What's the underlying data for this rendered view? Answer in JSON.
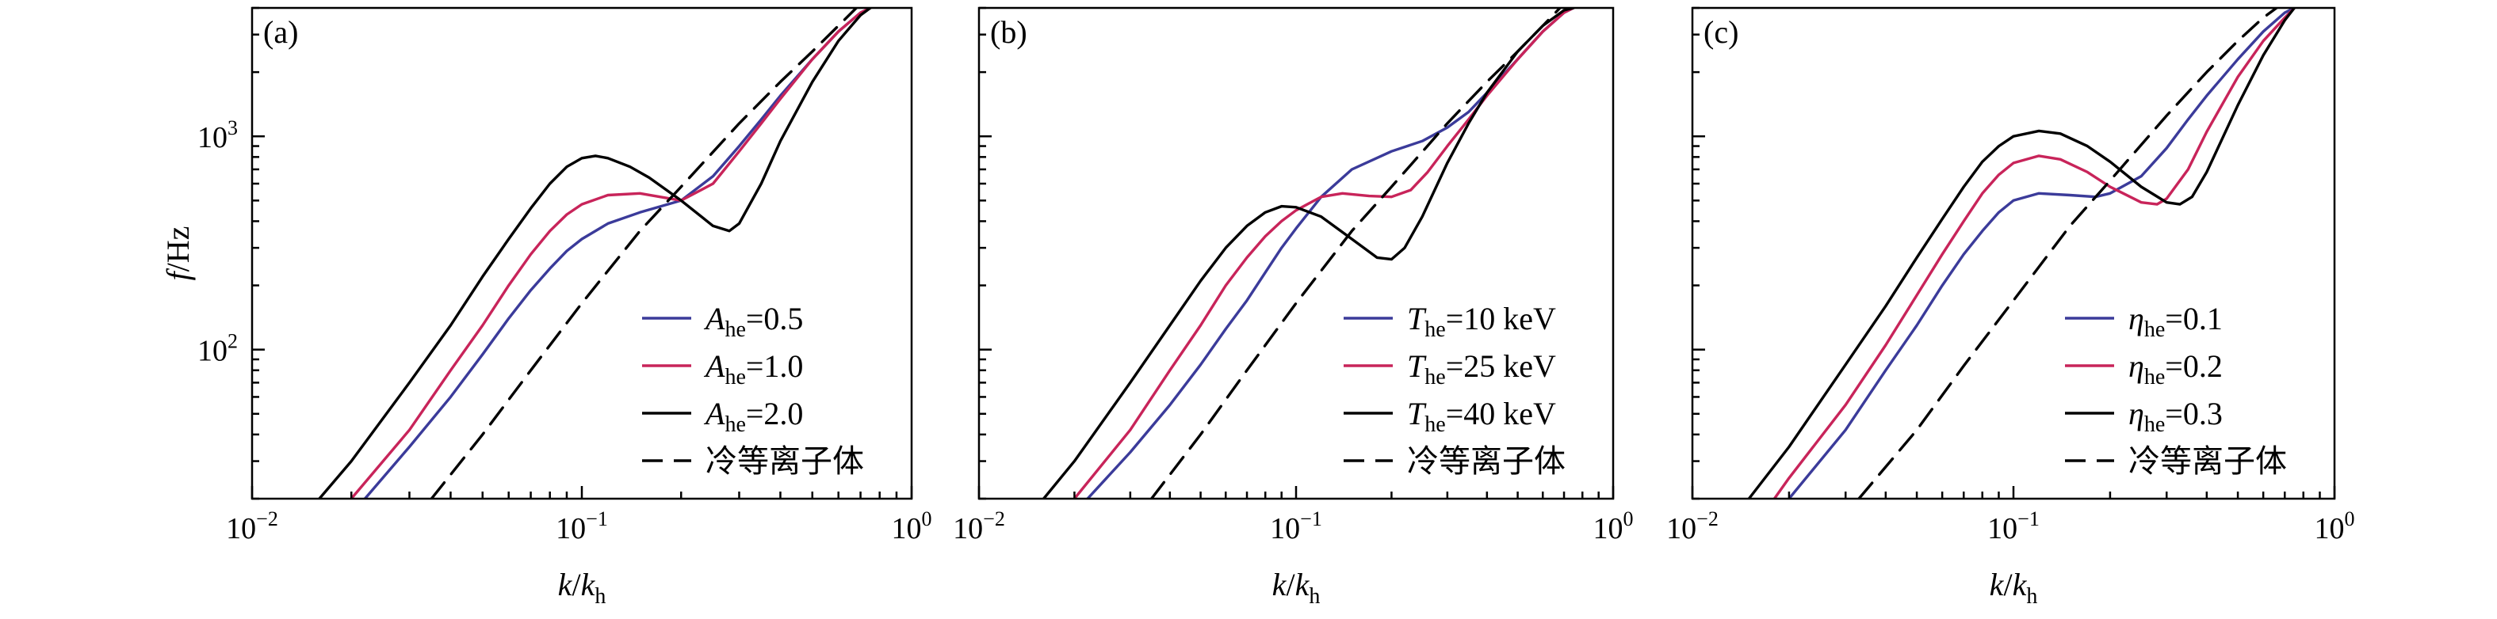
{
  "chart_data": [
    {
      "type": "line",
      "panel_label": "(a)",
      "xlabel": "k/k",
      "xlabel_sub": "h",
      "ylabel": "f/Hz",
      "xscale": "log",
      "yscale": "log",
      "xlim": [
        0.01,
        1
      ],
      "ylim": [
        20,
        4000
      ],
      "xticks": [
        {
          "value": 0.01,
          "base": "10",
          "exp": "−2"
        },
        {
          "value": 0.1,
          "base": "10",
          "exp": "−1"
        },
        {
          "value": 1,
          "base": "10",
          "exp": "0"
        }
      ],
      "yticks": [
        {
          "value": 100,
          "base": "10",
          "exp": "2"
        },
        {
          "value": 1000,
          "base": "10",
          "exp": "3"
        }
      ],
      "legend_position": "lower-right",
      "series": [
        {
          "name": "A",
          "name_sub": "he",
          "name_rest": "=0.5",
          "color": "#3b3b9a",
          "dash": "solid",
          "x": [
            0.022,
            0.03,
            0.04,
            0.05,
            0.06,
            0.07,
            0.08,
            0.09,
            0.1,
            0.12,
            0.15,
            0.2,
            0.25,
            0.3,
            0.35,
            0.4,
            0.5,
            0.6,
            0.7,
            0.75
          ],
          "y": [
            20,
            35,
            60,
            95,
            140,
            190,
            240,
            290,
            330,
            390,
            440,
            500,
            650,
            900,
            1200,
            1550,
            2300,
            3100,
            3800,
            4000
          ]
        },
        {
          "name": "A",
          "name_sub": "he",
          "name_rest": "=1.0",
          "color": "#c8245a",
          "dash": "solid",
          "x": [
            0.02,
            0.03,
            0.04,
            0.05,
            0.06,
            0.07,
            0.08,
            0.09,
            0.1,
            0.12,
            0.15,
            0.2,
            0.25,
            0.3,
            0.35,
            0.4,
            0.5,
            0.6,
            0.7,
            0.75
          ],
          "y": [
            20,
            42,
            80,
            130,
            200,
            280,
            360,
            430,
            480,
            530,
            540,
            500,
            600,
            850,
            1150,
            1500,
            2300,
            3100,
            3800,
            4000
          ]
        },
        {
          "name": "A",
          "name_sub": "he",
          "name_rest": "=2.0",
          "color": "#000000",
          "dash": "solid",
          "x": [
            0.016,
            0.02,
            0.03,
            0.04,
            0.05,
            0.06,
            0.07,
            0.08,
            0.09,
            0.1,
            0.11,
            0.12,
            0.14,
            0.16,
            0.2,
            0.25,
            0.28,
            0.3,
            0.35,
            0.4,
            0.5,
            0.6,
            0.7,
            0.75
          ],
          "y": [
            20,
            30,
            70,
            130,
            220,
            330,
            460,
            600,
            720,
            790,
            810,
            790,
            720,
            640,
            500,
            380,
            360,
            390,
            600,
            950,
            1800,
            2800,
            3700,
            4000
          ]
        },
        {
          "name": "冷等离子体",
          "name_sub": "",
          "name_rest": "",
          "color": "#000000",
          "dash": "dashed",
          "x": [
            0.035,
            0.05,
            0.07,
            0.1,
            0.15,
            0.2,
            0.3,
            0.4,
            0.5,
            0.6,
            0.68
          ],
          "y": [
            20,
            40,
            80,
            165,
            360,
            580,
            1150,
            1800,
            2500,
            3300,
            4000
          ]
        }
      ]
    },
    {
      "type": "line",
      "panel_label": "(b)",
      "xlabel": "k/k",
      "xlabel_sub": "h",
      "ylabel": "",
      "xscale": "log",
      "yscale": "log",
      "xlim": [
        0.01,
        1
      ],
      "ylim": [
        20,
        4000
      ],
      "xticks": [
        {
          "value": 0.01,
          "base": "10",
          "exp": "−2"
        },
        {
          "value": 0.1,
          "base": "10",
          "exp": "−1"
        },
        {
          "value": 1,
          "base": "10",
          "exp": "0"
        }
      ],
      "yticks": [],
      "legend_position": "lower-right",
      "series": [
        {
          "name": "T",
          "name_sub": "he",
          "name_rest": "=10 keV",
          "color": "#3b3b9a",
          "dash": "solid",
          "x": [
            0.022,
            0.03,
            0.04,
            0.05,
            0.06,
            0.07,
            0.08,
            0.09,
            0.1,
            0.12,
            0.15,
            0.2,
            0.25,
            0.3,
            0.35,
            0.4,
            0.5,
            0.6,
            0.7,
            0.75
          ],
          "y": [
            20,
            33,
            55,
            85,
            125,
            170,
            230,
            300,
            370,
            520,
            700,
            850,
            950,
            1100,
            1300,
            1600,
            2300,
            3100,
            3800,
            4000
          ]
        },
        {
          "name": "T",
          "name_sub": "he",
          "name_rest": "=25 keV",
          "color": "#c8245a",
          "dash": "solid",
          "x": [
            0.02,
            0.03,
            0.04,
            0.05,
            0.06,
            0.07,
            0.08,
            0.09,
            0.1,
            0.12,
            0.14,
            0.17,
            0.2,
            0.23,
            0.26,
            0.3,
            0.35,
            0.4,
            0.5,
            0.6,
            0.7,
            0.75
          ],
          "y": [
            20,
            42,
            80,
            130,
            200,
            270,
            340,
            400,
            450,
            520,
            540,
            525,
            520,
            560,
            680,
            900,
            1200,
            1550,
            2300,
            3100,
            3800,
            4000
          ]
        },
        {
          "name": "T",
          "name_sub": "he",
          "name_rest": "=40 keV",
          "color": "#000000",
          "dash": "solid",
          "x": [
            0.016,
            0.02,
            0.03,
            0.04,
            0.05,
            0.06,
            0.07,
            0.08,
            0.09,
            0.1,
            0.12,
            0.15,
            0.18,
            0.2,
            0.22,
            0.25,
            0.3,
            0.35,
            0.4,
            0.5,
            0.6,
            0.7,
            0.75
          ],
          "y": [
            20,
            30,
            70,
            130,
            210,
            300,
            380,
            440,
            470,
            465,
            420,
            330,
            270,
            265,
            300,
            420,
            750,
            1150,
            1600,
            2500,
            3300,
            3900,
            4000
          ]
        },
        {
          "name": "冷等离子体",
          "name_sub": "",
          "name_rest": "",
          "color": "#000000",
          "dash": "dashed",
          "x": [
            0.035,
            0.05,
            0.07,
            0.1,
            0.15,
            0.2,
            0.3,
            0.4,
            0.5,
            0.6,
            0.68
          ],
          "y": [
            20,
            40,
            80,
            165,
            360,
            580,
            1150,
            1800,
            2500,
            3300,
            4000
          ]
        }
      ]
    },
    {
      "type": "line",
      "panel_label": "(c)",
      "xlabel": "k/k",
      "xlabel_sub": "h",
      "ylabel": "",
      "xscale": "log",
      "yscale": "log",
      "xlim": [
        0.01,
        1
      ],
      "ylim": [
        20,
        4000
      ],
      "xticks": [
        {
          "value": 0.01,
          "base": "10",
          "exp": "−2"
        },
        {
          "value": 0.1,
          "base": "10",
          "exp": "−1"
        },
        {
          "value": 1,
          "base": "10",
          "exp": "0"
        }
      ],
      "yticks": [],
      "legend_position": "lower-right",
      "series": [
        {
          "name": "η",
          "name_sub": "he",
          "name_rest": "=0.1",
          "color": "#3b3b9a",
          "dash": "solid",
          "x": [
            0.02,
            0.03,
            0.04,
            0.05,
            0.06,
            0.07,
            0.08,
            0.09,
            0.1,
            0.12,
            0.15,
            0.18,
            0.2,
            0.25,
            0.3,
            0.35,
            0.4,
            0.5,
            0.6,
            0.7,
            0.75
          ],
          "y": [
            20,
            42,
            80,
            130,
            200,
            280,
            360,
            440,
            500,
            540,
            530,
            520,
            540,
            650,
            880,
            1200,
            1550,
            2300,
            3100,
            3800,
            4000
          ]
        },
        {
          "name": "η",
          "name_sub": "he",
          "name_rest": "=0.2",
          "color": "#c8245a",
          "dash": "solid",
          "x": [
            0.018,
            0.02,
            0.03,
            0.04,
            0.05,
            0.06,
            0.07,
            0.08,
            0.09,
            0.1,
            0.12,
            0.14,
            0.17,
            0.2,
            0.25,
            0.28,
            0.3,
            0.35,
            0.4,
            0.5,
            0.6,
            0.7,
            0.75
          ],
          "y": [
            20,
            25,
            55,
            105,
            180,
            280,
            400,
            540,
            660,
            750,
            810,
            780,
            680,
            580,
            490,
            480,
            510,
            700,
            1050,
            1900,
            2800,
            3600,
            4000
          ]
        },
        {
          "name": "η",
          "name_sub": "he",
          "name_rest": "=0.3",
          "color": "#000000",
          "dash": "solid",
          "x": [
            0.015,
            0.02,
            0.03,
            0.04,
            0.05,
            0.06,
            0.07,
            0.08,
            0.09,
            0.1,
            0.12,
            0.14,
            0.17,
            0.2,
            0.25,
            0.3,
            0.33,
            0.36,
            0.4,
            0.5,
            0.6,
            0.7,
            0.75
          ],
          "y": [
            20,
            35,
            85,
            160,
            270,
            410,
            580,
            760,
            900,
            1000,
            1060,
            1030,
            900,
            760,
            580,
            490,
            480,
            520,
            680,
            1400,
            2400,
            3500,
            4000
          ]
        },
        {
          "name": "冷等离子体",
          "name_sub": "",
          "name_rest": "",
          "color": "#000000",
          "dash": "dashed",
          "x": [
            0.033,
            0.05,
            0.07,
            0.1,
            0.15,
            0.2,
            0.3,
            0.4,
            0.5,
            0.6,
            0.66
          ],
          "y": [
            20,
            42,
            84,
            170,
            380,
            620,
            1250,
            2000,
            2800,
            3600,
            4000
          ]
        }
      ]
    }
  ]
}
